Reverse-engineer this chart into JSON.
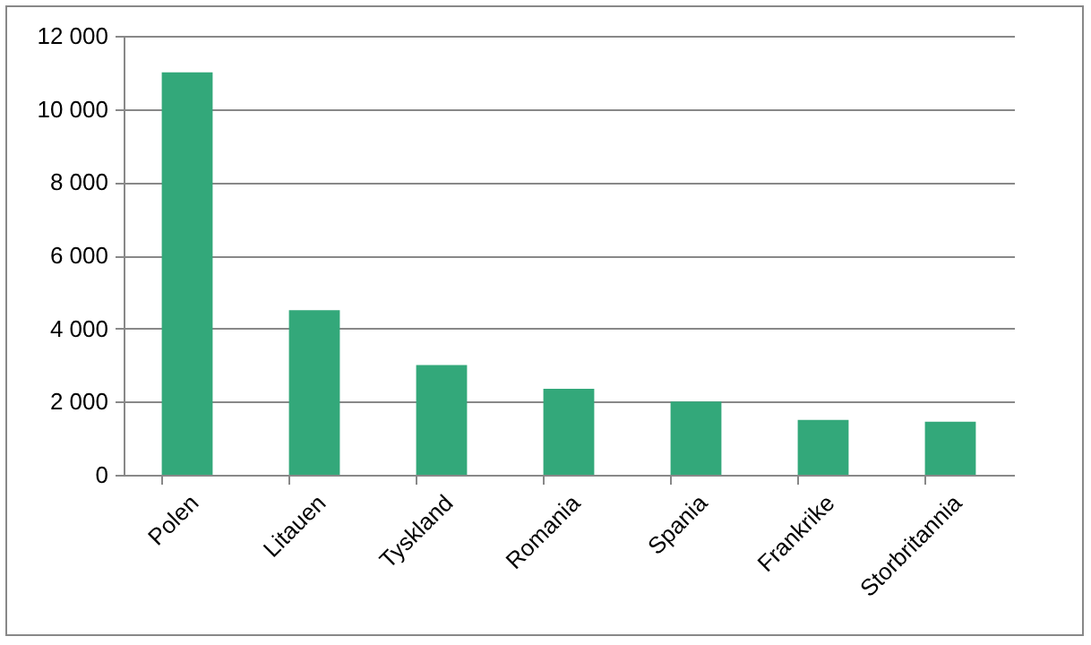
{
  "chart_data": {
    "type": "bar",
    "categories": [
      "Polen",
      "Litauen",
      "Tyskland",
      "Romania",
      "Spania",
      "Frankrike",
      "Storbritannia"
    ],
    "values": [
      11000,
      4500,
      3000,
      2350,
      2000,
      1500,
      1450
    ],
    "color": "#33a87a",
    "ylim": [
      0,
      12000
    ],
    "yticks": [
      {
        "value": 0,
        "label": "0"
      },
      {
        "value": 2000,
        "label": "2 000"
      },
      {
        "value": 4000,
        "label": "4 000"
      },
      {
        "value": 6000,
        "label": "6 000"
      },
      {
        "value": 8000,
        "label": "8 000"
      },
      {
        "value": 10000,
        "label": "10 000"
      },
      {
        "value": 12000,
        "label": "12 000"
      }
    ],
    "grid": "y"
  }
}
